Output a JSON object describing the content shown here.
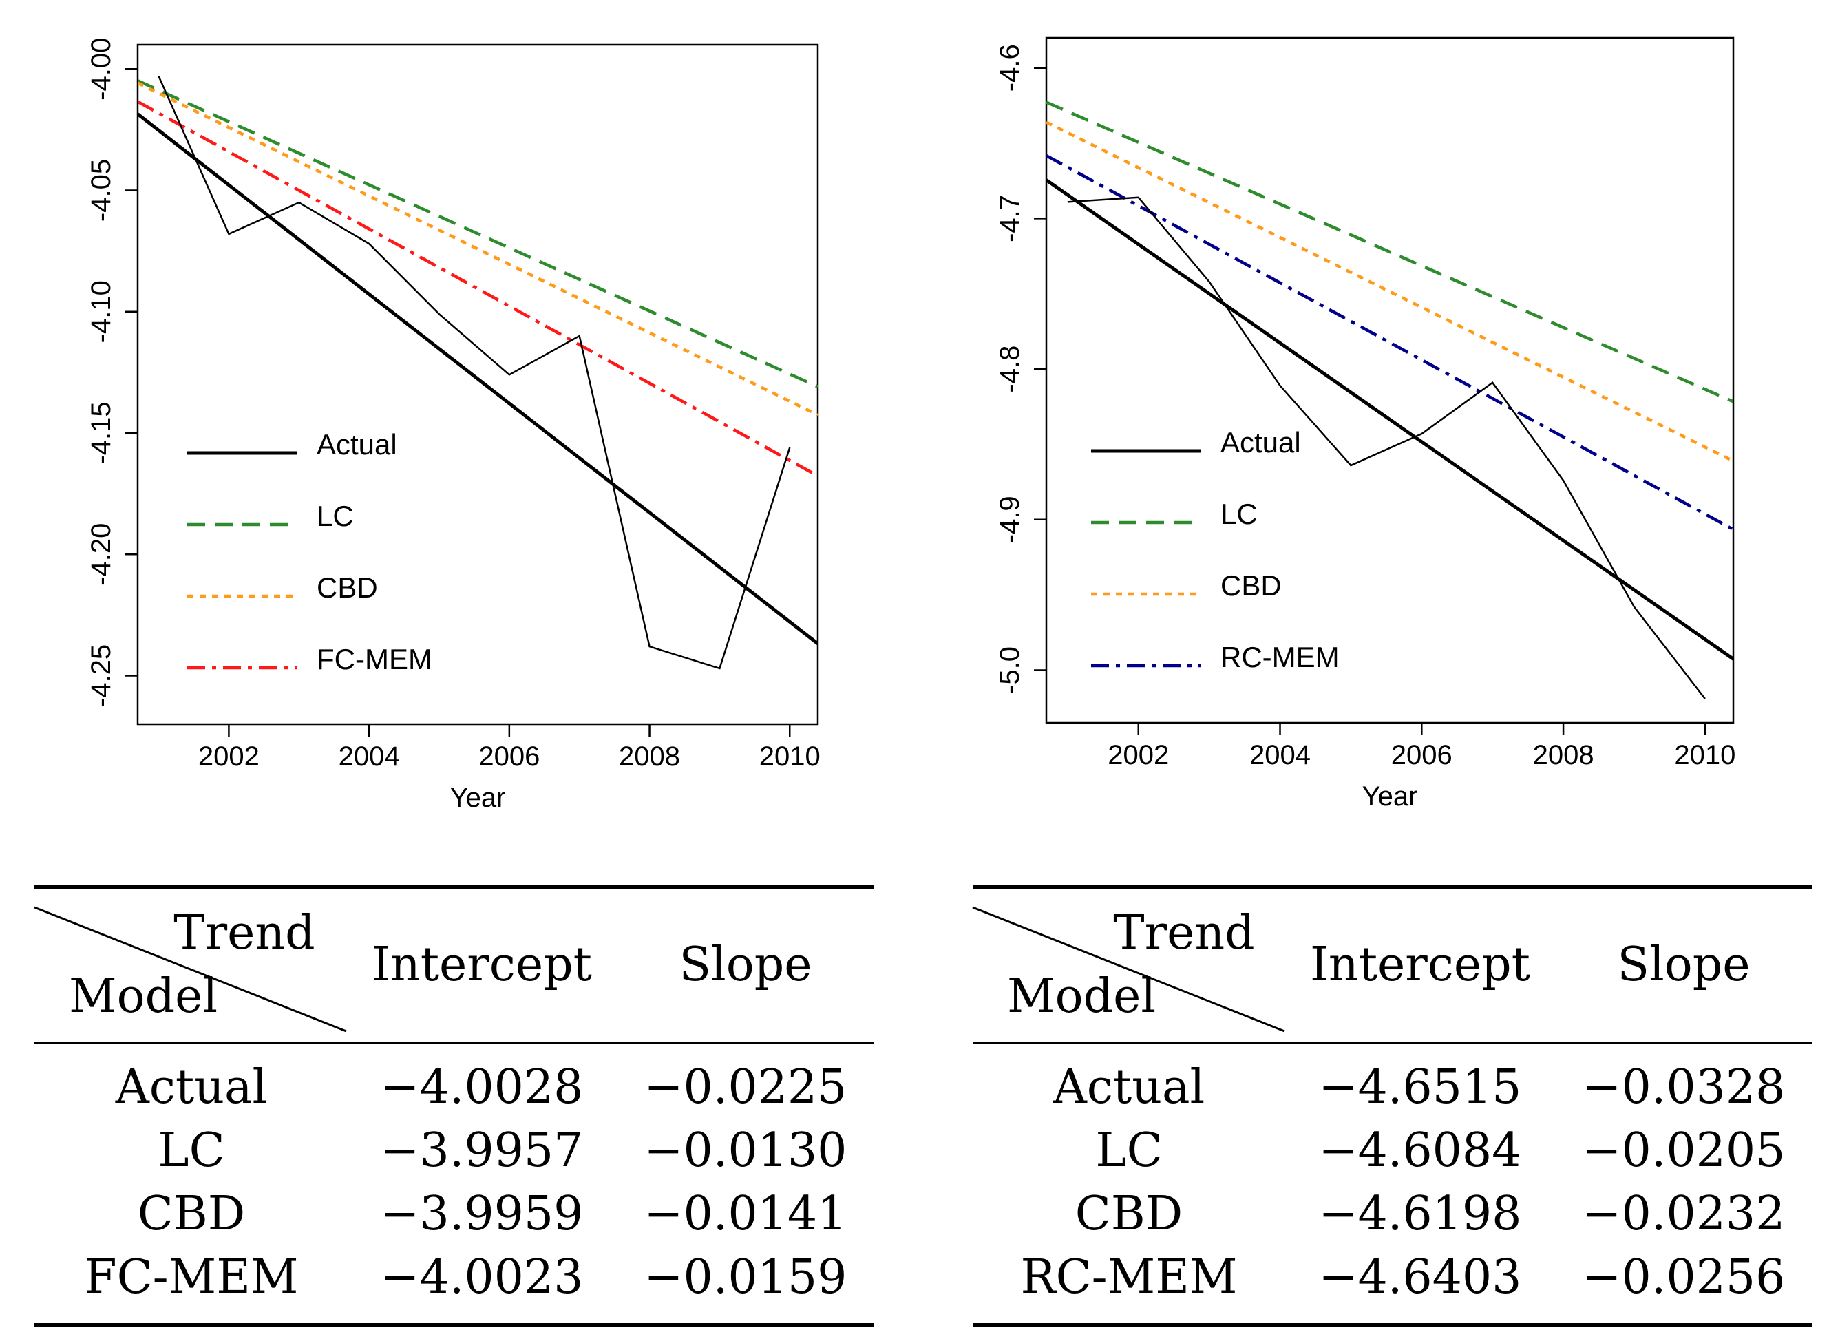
{
  "chart_data": [
    {
      "type": "line",
      "xlabel": "Year",
      "ylabel": "",
      "xlim": [
        2000.7,
        2010.4
      ],
      "ylim": [
        -4.27,
        -3.99
      ],
      "xticks": [
        2002,
        2004,
        2006,
        2008,
        2010
      ],
      "yticks": [
        -4.0,
        -4.05,
        -4.1,
        -4.15,
        -4.2,
        -4.25
      ],
      "ytick_labels": [
        "-4.00",
        "-4.05",
        "-4.10",
        "-4.15",
        "-4.20",
        "-4.25"
      ],
      "legend_position": "lower-left",
      "observed": {
        "x": [
          2001,
          2002,
          2003,
          2004,
          2005,
          2006,
          2007,
          2008,
          2009,
          2010
        ],
        "y": [
          -4.003,
          -4.068,
          -4.055,
          -4.072,
          -4.101,
          -4.126,
          -4.11,
          -4.238,
          -4.247,
          -4.156
        ]
      },
      "series": [
        {
          "name": "Actual",
          "color": "#000000",
          "style": "solid",
          "intercept": -4.0028,
          "slope": -0.0225
        },
        {
          "name": "LC",
          "color": "#2e8b2e",
          "style": "dashed",
          "intercept": -3.9957,
          "slope": -0.013
        },
        {
          "name": "CBD",
          "color": "#ff9a1a",
          "style": "dotted",
          "intercept": -3.9959,
          "slope": -0.0141
        },
        {
          "name": "FC-MEM",
          "color": "#ff1a1a",
          "style": "dashdot",
          "intercept": -4.0023,
          "slope": -0.0159
        }
      ]
    },
    {
      "type": "line",
      "xlabel": "Year",
      "ylabel": "",
      "xlim": [
        2000.7,
        2010.4
      ],
      "ylim": [
        -5.035,
        -4.58
      ],
      "xticks": [
        2002,
        2004,
        2006,
        2008,
        2010
      ],
      "yticks": [
        -4.6,
        -4.7,
        -4.8,
        -4.9,
        -5.0
      ],
      "ytick_labels": [
        "-4.6",
        "-4.7",
        "-4.8",
        "-4.9",
        "-5.0"
      ],
      "legend_position": "lower-left",
      "observed": {
        "x": [
          2001,
          2002,
          2003,
          2004,
          2005,
          2006,
          2007,
          2008,
          2009,
          2010
        ],
        "y": [
          -4.689,
          -4.686,
          -4.742,
          -4.811,
          -4.864,
          -4.843,
          -4.809,
          -4.874,
          -4.958,
          -5.019
        ]
      },
      "series": [
        {
          "name": "Actual",
          "color": "#000000",
          "style": "solid",
          "intercept": -4.6515,
          "slope": -0.0328
        },
        {
          "name": "LC",
          "color": "#2e8b2e",
          "style": "dashed",
          "intercept": -4.6084,
          "slope": -0.0205
        },
        {
          "name": "CBD",
          "color": "#ff9a1a",
          "style": "dotted",
          "intercept": -4.6198,
          "slope": -0.0232
        },
        {
          "name": "RC-MEM",
          "color": "#00008b",
          "style": "dashdot",
          "intercept": -4.6403,
          "slope": -0.0256
        }
      ]
    }
  ],
  "tables": [
    {
      "corner_top": "Trend",
      "corner_bottom": "Model",
      "col_intercept": "Intercept",
      "col_slope": "Slope",
      "rows": [
        {
          "model": "Actual",
          "intercept": "−4.0028",
          "slope": "−0.0225"
        },
        {
          "model": "LC",
          "intercept": "−3.9957",
          "slope": "−0.0130"
        },
        {
          "model": "CBD",
          "intercept": "−3.9959",
          "slope": "−0.0141"
        },
        {
          "model": "FC-MEM",
          "intercept": "−4.0023",
          "slope": "−0.0159"
        }
      ]
    },
    {
      "corner_top": "Trend",
      "corner_bottom": "Model",
      "col_intercept": "Intercept",
      "col_slope": "Slope",
      "rows": [
        {
          "model": "Actual",
          "intercept": "−4.6515",
          "slope": "−0.0328"
        },
        {
          "model": "LC",
          "intercept": "−4.6084",
          "slope": "−0.0205"
        },
        {
          "model": "CBD",
          "intercept": "−4.6198",
          "slope": "−0.0232"
        },
        {
          "model": "RC-MEM",
          "intercept": "−4.6403",
          "slope": "−0.0256"
        }
      ]
    }
  ]
}
